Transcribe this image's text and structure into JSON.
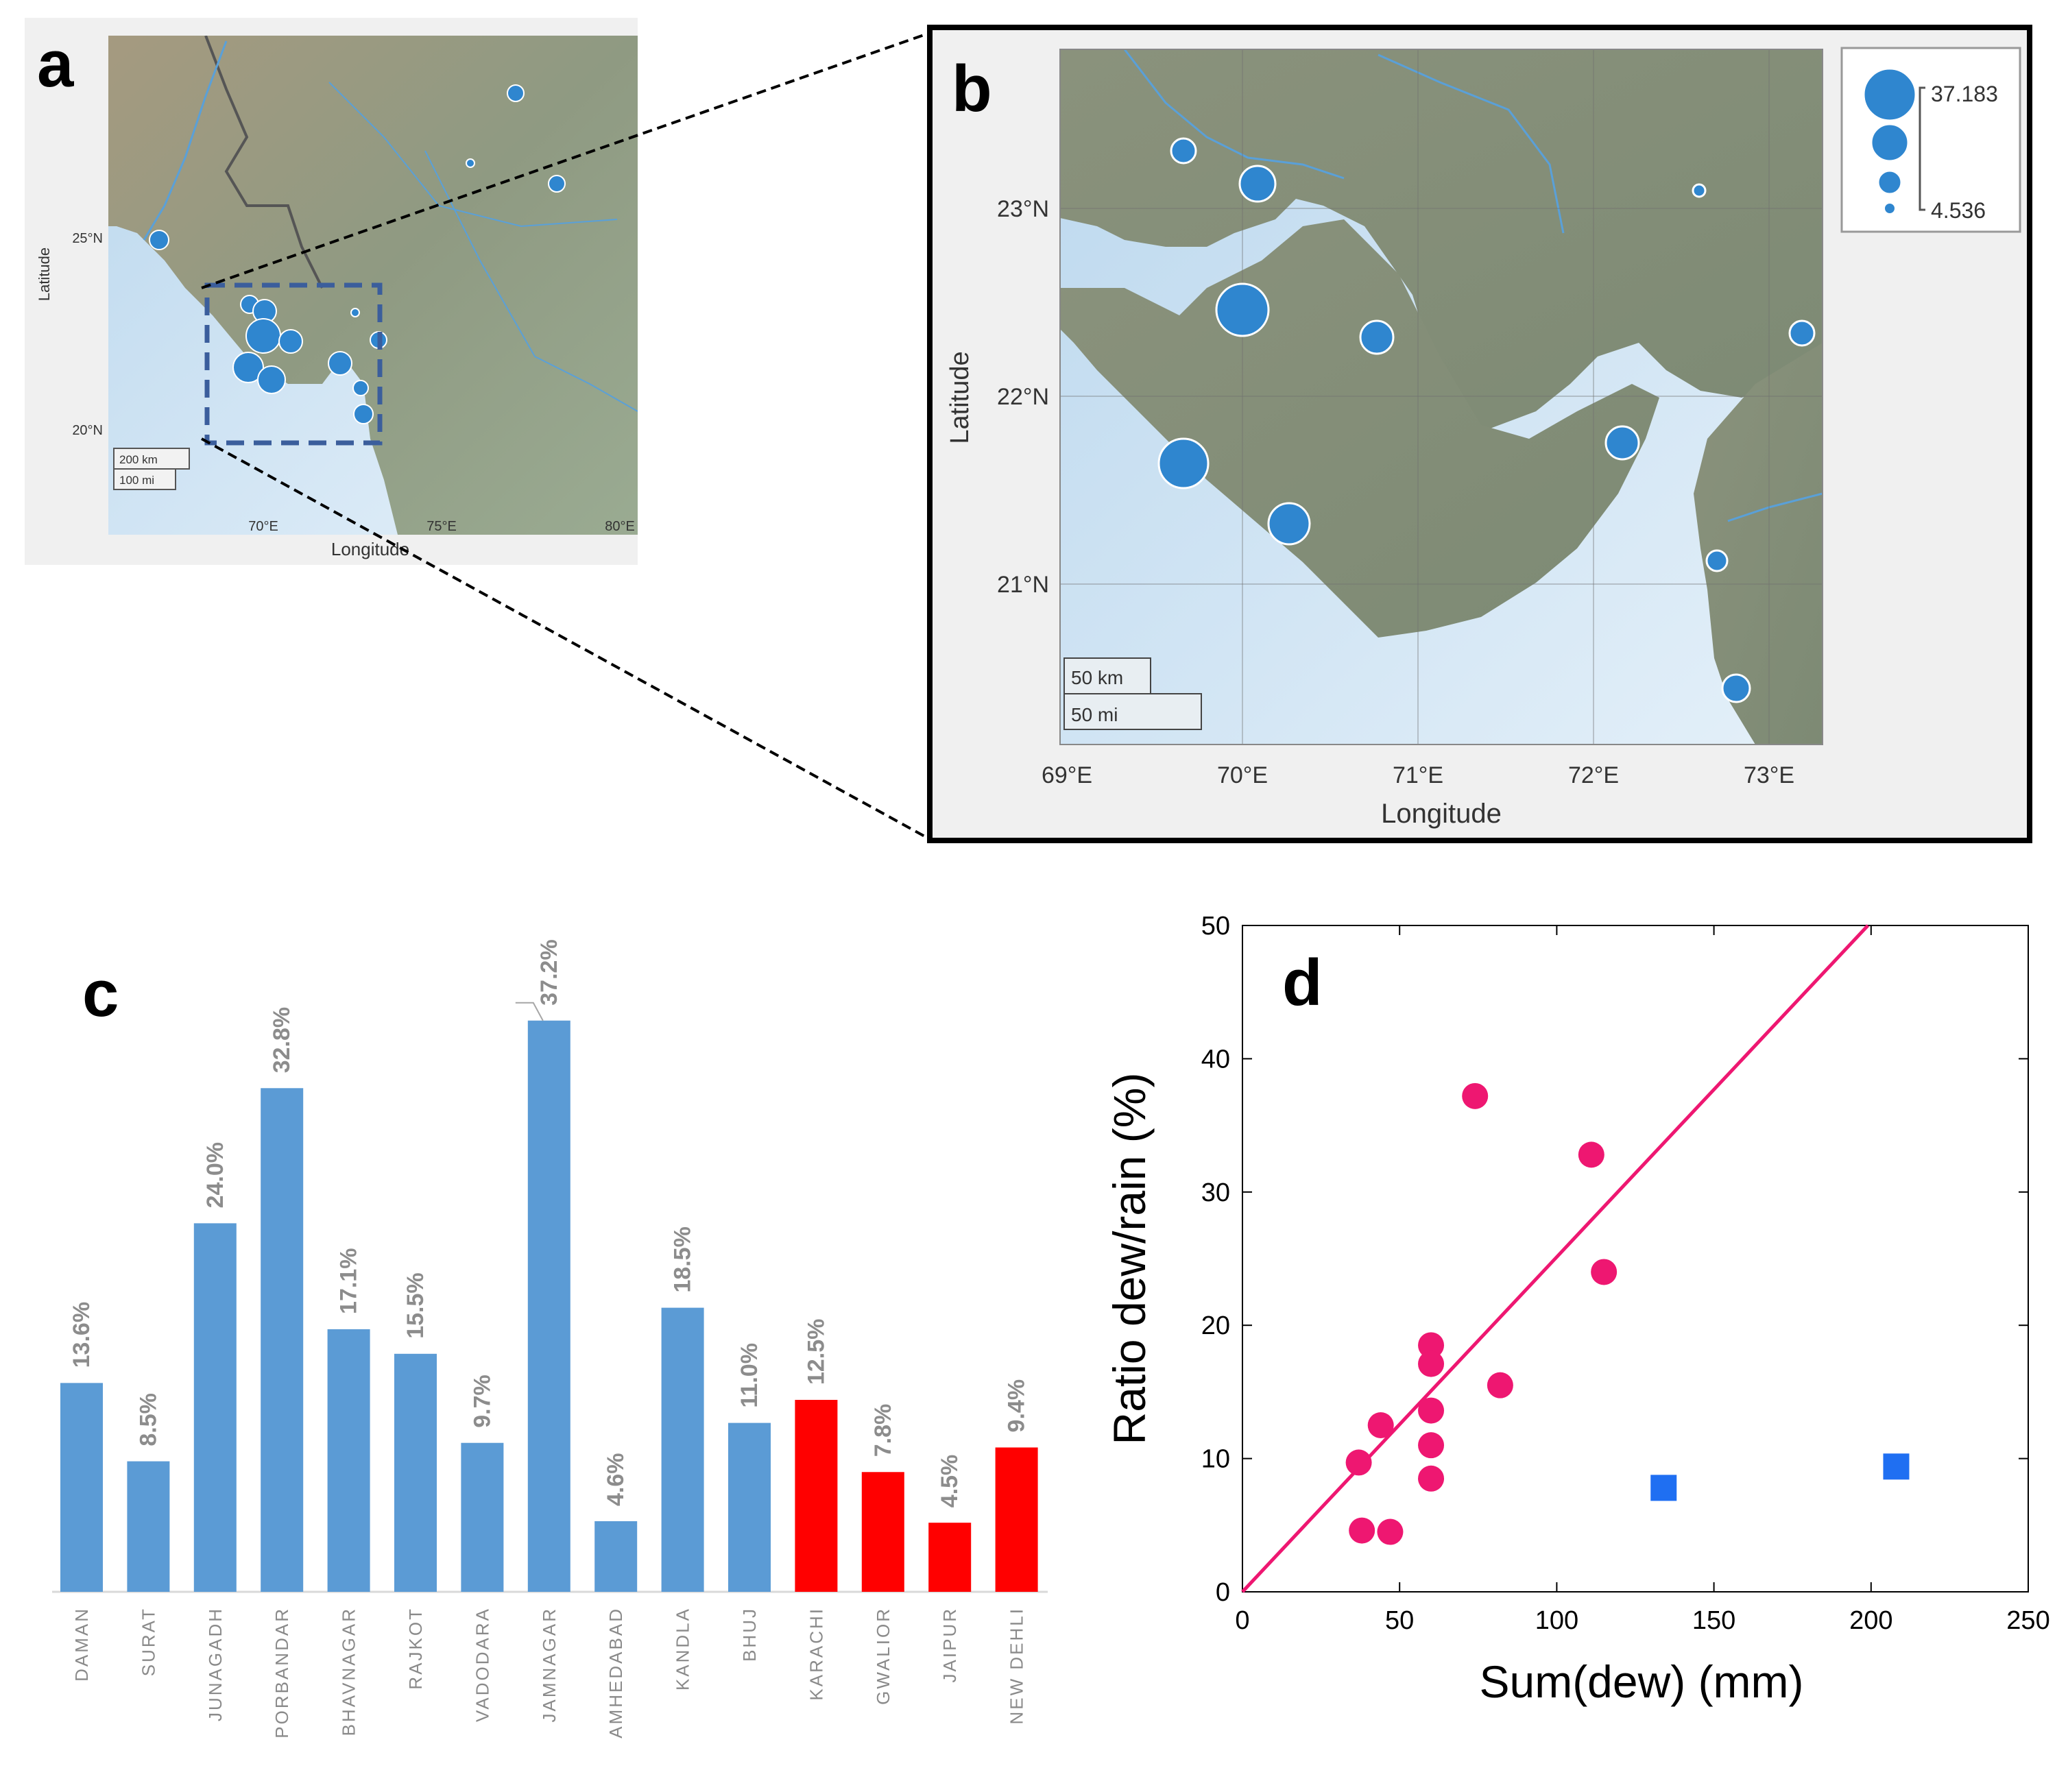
{
  "panel_labels": {
    "a": "a",
    "b": "b",
    "c": "c",
    "d": "d"
  },
  "map_a": {
    "lat_label": "Latitude",
    "lon_label": "Longitude",
    "lat_ticks": [
      "25°N",
      "20°N"
    ],
    "lon_ticks": [
      "70°E",
      "75°E",
      "80°E"
    ],
    "scale_km": "200 km",
    "scale_mi": "100 mi"
  },
  "map_b": {
    "lat_label": "Latitude",
    "lon_label": "Longitude",
    "lat_ticks": [
      "23°N",
      "22°N",
      "21°N"
    ],
    "lon_ticks": [
      "69°E",
      "70°E",
      "71°E",
      "72°E",
      "73°E"
    ],
    "scale_km": "50 km",
    "scale_mi": "50 mi",
    "legend_max": "37.183",
    "legend_min": "4.536"
  },
  "colors": {
    "bar_blue": "#5b9bd5",
    "bar_red": "#ff0000",
    "bar_label": "#8c8c8c",
    "scatter_pink": "#ee1771",
    "scatter_blue": "#1f6ff2",
    "map_marker": "#2f86cf",
    "sea": "#cfe3f2",
    "land": "#8f9a82"
  },
  "chart_data": [
    {
      "id": "c",
      "type": "bar",
      "title": "",
      "categories": [
        "DAMAN",
        "SURAT",
        "JUNAGADH",
        "PORBANDAR",
        "BHAVNAGAR",
        "RAJKOT",
        "VADODARA",
        "JAMNAGAR",
        "AMHEDABAD",
        "KANDLA",
        "BHUJ",
        "KARACHI",
        "GWALIOR",
        "JAIPUR",
        "NEW DEHLI"
      ],
      "values": [
        13.6,
        8.5,
        24.0,
        32.8,
        17.1,
        15.5,
        9.7,
        37.2,
        4.6,
        18.5,
        11.0,
        12.5,
        7.8,
        4.5,
        9.4
      ],
      "labels": [
        "13.6%",
        "8.5%",
        "24.0%",
        "32.8%",
        "17.1%",
        "15.5%",
        "9.7%",
        "37.2%",
        "4.6%",
        "18.5%",
        "11.0%",
        "12.5%",
        "7.8%",
        "4.5%",
        "9.4%"
      ],
      "groups": [
        "blue",
        "blue",
        "blue",
        "blue",
        "blue",
        "blue",
        "blue",
        "blue",
        "blue",
        "blue",
        "blue",
        "red",
        "red",
        "red",
        "red"
      ],
      "ylim": [
        0,
        40
      ]
    },
    {
      "id": "d",
      "type": "scatter",
      "xlabel": "Sum(dew) (mm)",
      "ylabel": "Ratio dew/rain (%)",
      "xlim": [
        0,
        250
      ],
      "ylim": [
        0,
        50
      ],
      "xticks": [
        0,
        50,
        100,
        150,
        200,
        250
      ],
      "yticks": [
        0,
        10,
        20,
        30,
        40,
        50
      ],
      "series": [
        {
          "name": "circles",
          "marker": "circle",
          "points": [
            [
              74,
              37.2
            ],
            [
              111,
              32.8
            ],
            [
              115,
              24.0
            ],
            [
              60,
              18.5
            ],
            [
              60,
              17.1
            ],
            [
              82,
              15.5
            ],
            [
              60,
              13.6
            ],
            [
              44,
              12.5
            ],
            [
              60,
              11.0
            ],
            [
              37,
              9.7
            ],
            [
              60,
              8.5
            ],
            [
              38,
              4.6
            ],
            [
              47,
              4.5
            ]
          ]
        },
        {
          "name": "squares",
          "marker": "square",
          "points": [
            [
              134,
              7.8
            ],
            [
              208,
              9.4
            ]
          ]
        }
      ],
      "fit_line": [
        [
          0,
          0
        ],
        [
          199,
          50
        ]
      ]
    }
  ]
}
